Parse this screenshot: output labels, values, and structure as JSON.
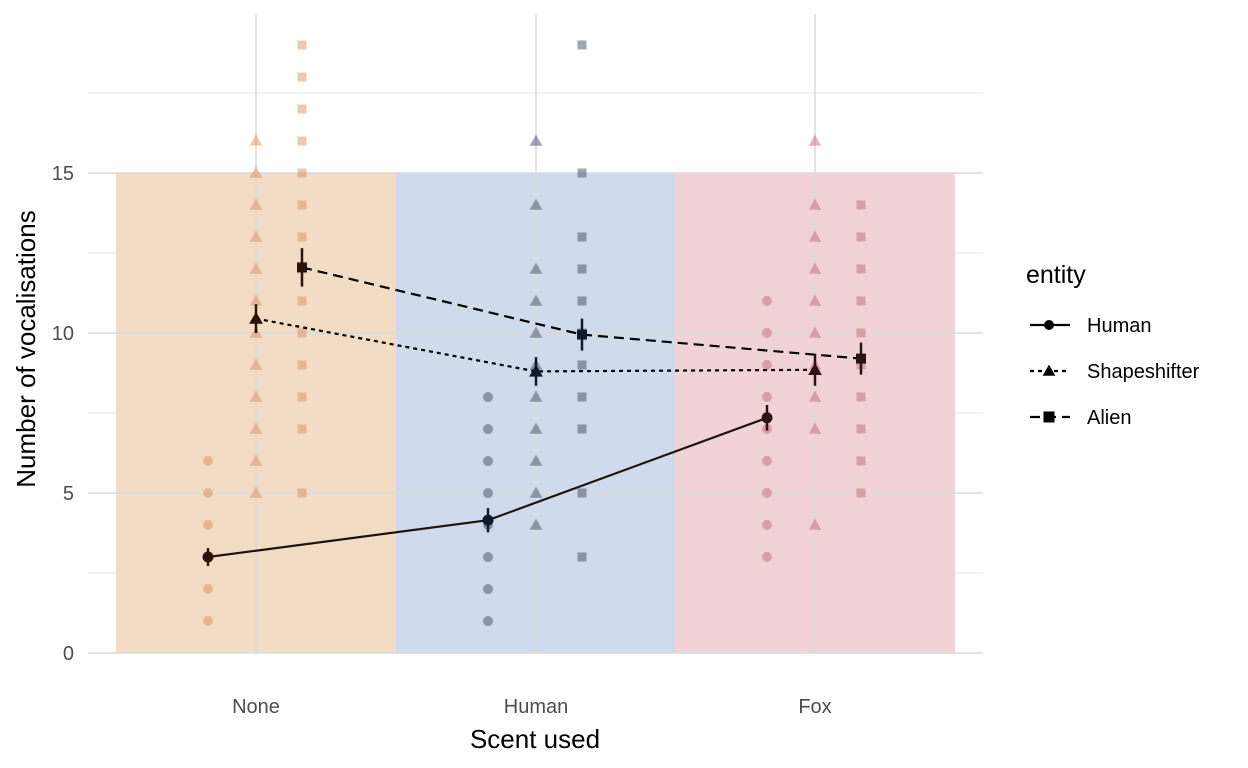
{
  "chart_data": {
    "type": "scatter",
    "xlabel": "Scent used",
    "ylabel": "Number of vocalisations",
    "categories": [
      "None",
      "Human",
      "Fox"
    ],
    "ylim": [
      0,
      19
    ],
    "yticks": [
      0,
      5,
      10,
      15
    ],
    "grid": true,
    "background_bands": [
      {
        "category": "None",
        "from": 0,
        "to": 15,
        "color": "#f2dcc4"
      },
      {
        "category": "Human",
        "from": 0,
        "to": 15,
        "color": "#cfdbec"
      },
      {
        "category": "Fox",
        "from": 0,
        "to": 15,
        "color": "#f1d3d5"
      }
    ],
    "band_colors_by_category": {
      "None": "#f2dcc4",
      "Human": "#cfdbec",
      "Fox": "#f1d3d5"
    },
    "point_colors": {
      "None": "#d08a55",
      "Human": "#2c3b57",
      "Fox": "#b86468"
    },
    "legend": {
      "title": "entity",
      "position": "right",
      "entries": [
        "Human",
        "Shapeshifter",
        "Alien"
      ]
    },
    "series": [
      {
        "name": "Human",
        "shape": "circle",
        "linestyle": "solid",
        "line_color": "#1e1410",
        "means": [
          3.0,
          4.15,
          7.35
        ],
        "error": [
          0.28,
          0.38,
          0.4
        ],
        "raw": [
          [
            1,
            2,
            3,
            4,
            5,
            6
          ],
          [
            1,
            2,
            3,
            4,
            5,
            6,
            7,
            8
          ],
          [
            3,
            4,
            5,
            6,
            7,
            8,
            9,
            10,
            11
          ]
        ]
      },
      {
        "name": "Shapeshifter",
        "shape": "triangle",
        "linestyle": "dotted",
        "line_color": "#000000",
        "means": [
          10.45,
          8.8,
          8.85
        ],
        "error": [
          0.45,
          0.45,
          0.5
        ],
        "raw": [
          [
            5,
            6,
            7,
            8,
            9,
            10,
            11,
            12,
            13,
            14,
            15,
            16
          ],
          [
            4,
            5,
            6,
            7,
            8,
            9,
            10,
            11,
            12,
            14,
            16
          ],
          [
            4,
            7,
            8,
            9,
            10,
            11,
            12,
            13,
            14,
            16
          ]
        ]
      },
      {
        "name": "Alien",
        "shape": "square",
        "linestyle": "dashed",
        "line_color": "#000000",
        "means": [
          12.05,
          9.95,
          9.2
        ],
        "error": [
          0.6,
          0.5,
          0.5
        ],
        "raw": [
          [
            5,
            7,
            8,
            9,
            10,
            11,
            12,
            13,
            14,
            15,
            16,
            17,
            18,
            19
          ],
          [
            3,
            5,
            7,
            8,
            9,
            10,
            11,
            12,
            13,
            15,
            19
          ],
          [
            5,
            6,
            7,
            8,
            9,
            10,
            11,
            12,
            13,
            14
          ]
        ]
      }
    ]
  }
}
